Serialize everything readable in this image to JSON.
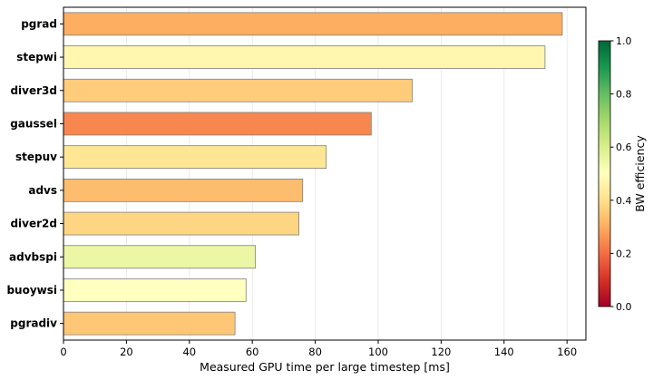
{
  "chart_data": {
    "type": "bar",
    "orientation": "horizontal",
    "categories": [
      "pgrad",
      "stepwi",
      "diver3d",
      "gaussel",
      "stepuv",
      "advs",
      "diver2d",
      "advbspi",
      "buoywsi",
      "pgradiv"
    ],
    "values": [
      158.5,
      153.0,
      110.8,
      97.8,
      83.5,
      76.0,
      74.8,
      61.0,
      58.0,
      54.5
    ],
    "bw_efficiency": [
      0.3,
      0.47,
      0.36,
      0.24,
      0.42,
      0.33,
      0.38,
      0.55,
      0.5,
      0.35
    ],
    "xlabel": "Measured GPU time per large timestep [ms]",
    "xlim": [
      0,
      166
    ],
    "xticks": [
      0,
      20,
      40,
      60,
      80,
      100,
      120,
      140,
      160
    ],
    "grid": "vertical",
    "colorbar": {
      "label": "BW efficiency",
      "range": [
        0.0,
        1.0
      ],
      "ticks": [
        "0.0",
        "0.2",
        "0.4",
        "0.6",
        "0.8",
        "1.0"
      ],
      "colormap": "RdYlGn"
    }
  }
}
